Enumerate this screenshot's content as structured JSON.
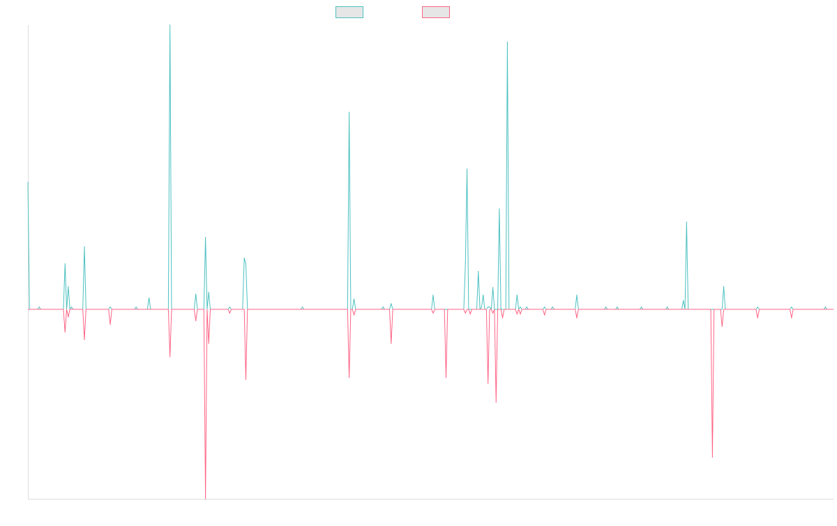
{
  "chart_data": {
    "type": "line",
    "title": "",
    "xlabel": "",
    "ylabel": "",
    "grid": false,
    "legend_position": "top-center",
    "x_points": 500,
    "ylim": [
      -1.0,
      1.5
    ],
    "series": [
      {
        "color": "#4bc0c0",
        "fill": "#e6e6e6",
        "spikes": [
          {
            "x": 0,
            "y": 0.67
          },
          {
            "x": 7,
            "y": 0.012
          },
          {
            "x": 23,
            "y": 0.24
          },
          {
            "x": 25,
            "y": 0.12
          },
          {
            "x": 27,
            "y": 0.012
          },
          {
            "x": 35,
            "y": 0.33
          },
          {
            "x": 51,
            "y": 0.012
          },
          {
            "x": 67,
            "y": 0.012
          },
          {
            "x": 75,
            "y": 0.06
          },
          {
            "x": 88,
            "y": 1.5
          },
          {
            "x": 104,
            "y": 0.08
          },
          {
            "x": 110,
            "y": 0.38
          },
          {
            "x": 112,
            "y": 0.09
          },
          {
            "x": 125,
            "y": 0.012
          },
          {
            "x": 134,
            "y": 0.27
          },
          {
            "x": 135,
            "y": 0.24
          },
          {
            "x": 170,
            "y": 0.012
          },
          {
            "x": 199,
            "y": 1.04
          },
          {
            "x": 202,
            "y": 0.055
          },
          {
            "x": 220,
            "y": 0.012
          },
          {
            "x": 225,
            "y": 0.03
          },
          {
            "x": 251,
            "y": 0.075
          },
          {
            "x": 271,
            "y": 0.24
          },
          {
            "x": 272,
            "y": 0.74
          },
          {
            "x": 279,
            "y": 0.2
          },
          {
            "x": 282,
            "y": 0.075
          },
          {
            "x": 281,
            "y": 0.012
          },
          {
            "x": 288,
            "y": 0.115
          },
          {
            "x": 285,
            "y": 0.012
          },
          {
            "x": 286,
            "y": 0.012
          },
          {
            "x": 292,
            "y": 0.53
          },
          {
            "x": 297,
            "y": 1.41
          },
          {
            "x": 303,
            "y": 0.075
          },
          {
            "x": 305,
            "y": 0.012
          },
          {
            "x": 309,
            "y": 0.012
          },
          {
            "x": 320,
            "y": 0.012
          },
          {
            "x": 325,
            "y": 0.012
          },
          {
            "x": 340,
            "y": 0.075
          },
          {
            "x": 358,
            "y": 0.012
          },
          {
            "x": 365,
            "y": 0.012
          },
          {
            "x": 380,
            "y": 0.012
          },
          {
            "x": 396,
            "y": 0.012
          },
          {
            "x": 406,
            "y": 0.046
          },
          {
            "x": 408,
            "y": 0.46
          },
          {
            "x": 431,
            "y": 0.12
          },
          {
            "x": 452,
            "y": 0.012
          },
          {
            "x": 473,
            "y": 0.012
          },
          {
            "x": 494,
            "y": 0.012
          }
        ]
      },
      {
        "color": "#ff6384",
        "fill": "#e6e6e6",
        "spikes": [
          {
            "x": 23,
            "y": -0.12
          },
          {
            "x": 25,
            "y": -0.04
          },
          {
            "x": 35,
            "y": -0.16
          },
          {
            "x": 51,
            "y": -0.08
          },
          {
            "x": 88,
            "y": -0.25
          },
          {
            "x": 104,
            "y": -0.06
          },
          {
            "x": 110,
            "y": -1.0
          },
          {
            "x": 112,
            "y": -0.18
          },
          {
            "x": 125,
            "y": -0.02
          },
          {
            "x": 135,
            "y": -0.37
          },
          {
            "x": 199,
            "y": -0.36
          },
          {
            "x": 202,
            "y": -0.03
          },
          {
            "x": 225,
            "y": -0.18
          },
          {
            "x": 251,
            "y": -0.02
          },
          {
            "x": 259,
            "y": -0.36
          },
          {
            "x": 271,
            "y": -0.02
          },
          {
            "x": 274,
            "y": -0.025
          },
          {
            "x": 285,
            "y": -0.39
          },
          {
            "x": 288,
            "y": -0.02
          },
          {
            "x": 290,
            "y": -0.49
          },
          {
            "x": 294,
            "y": -0.045
          },
          {
            "x": 303,
            "y": -0.025
          },
          {
            "x": 305,
            "y": -0.025
          },
          {
            "x": 320,
            "y": -0.03
          },
          {
            "x": 340,
            "y": -0.045
          },
          {
            "x": 424,
            "y": -0.78
          },
          {
            "x": 430,
            "y": -0.09
          },
          {
            "x": 452,
            "y": -0.045
          },
          {
            "x": 473,
            "y": -0.045
          }
        ]
      }
    ]
  }
}
